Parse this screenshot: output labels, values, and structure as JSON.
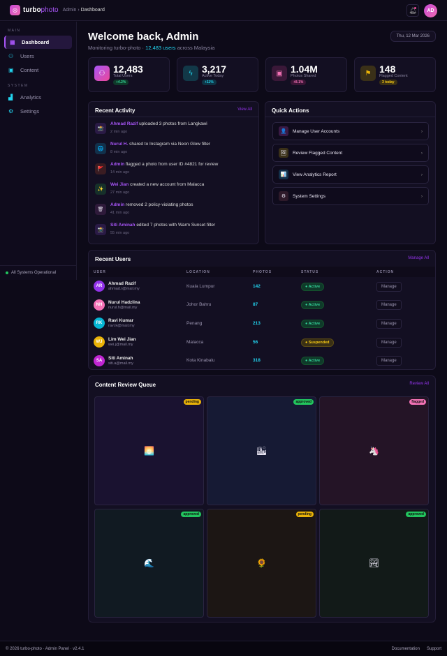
{
  "header": {
    "brand_a": "turbo",
    "brand_b": "photo",
    "crumb_parent": "Admin",
    "crumb_sep": "›",
    "crumb_current": "Dashboard",
    "avatar": "AD"
  },
  "sidebar": {
    "main_label": "MAIN",
    "system_label": "SYSTEM",
    "items": [
      {
        "label": "Dashboard",
        "icon": "grid-icon"
      },
      {
        "label": "Users",
        "icon": "users-icon"
      },
      {
        "label": "Content",
        "icon": "image-icon"
      },
      {
        "label": "Analytics",
        "icon": "bar-chart-icon"
      },
      {
        "label": "Settings",
        "icon": "gear-icon"
      }
    ],
    "status": "All Systems Operational"
  },
  "welcome": {
    "title": "Welcome back, Admin",
    "sub_a": "Monitoring turbo-photo · ",
    "sub_b": "12,483 users",
    "sub_c": " across Malaysia",
    "date": "Thu, 12 Mar 2026"
  },
  "stats": [
    {
      "value": "12,483",
      "label": "Total Users",
      "delta": "+4.2%"
    },
    {
      "value": "3,217",
      "label": "Active Today",
      "delta": "+11%"
    },
    {
      "value": "1.04M",
      "label": "Photos Shared",
      "delta": "+8.1%"
    },
    {
      "value": "148",
      "label": "Flagged Content",
      "delta": "3 today"
    }
  ],
  "activity": {
    "title": "Recent Activity",
    "link": "View All",
    "items": [
      {
        "who": "Ahmad Razif",
        "text": " uploaded 3 photos from Langkawi",
        "time": "2 min ago",
        "icon": "📸"
      },
      {
        "who": "Nurul H.",
        "text": " shared to Instagram via Neon Glow filter",
        "time": "8 min ago",
        "icon": "🌐"
      },
      {
        "who": "Admin",
        "text": " flagged a photo from user ID #4821 for review",
        "time": "14 min ago",
        "icon": "🚩"
      },
      {
        "who": "Wei Jian",
        "text": " created a new account from Malacca",
        "time": "27 min ago",
        "icon": "✨"
      },
      {
        "who": "Admin",
        "text": " removed 2 policy-violating photos",
        "time": "41 min ago",
        "icon": "🗑"
      },
      {
        "who": "Siti Aminah",
        "text": " edited 7 photos with Warm Sunset filter",
        "time": "55 min ago",
        "icon": "📸"
      }
    ]
  },
  "quick": {
    "title": "Quick Actions",
    "items": [
      {
        "label": "Manage User Accounts",
        "icon": "👤"
      },
      {
        "label": "Review Flagged Content",
        "icon": "🖼"
      },
      {
        "label": "View Analytics Report",
        "icon": "📊"
      },
      {
        "label": "System Settings",
        "icon": "⚙"
      }
    ]
  },
  "users": {
    "title": "Recent Users",
    "link": "Manage All",
    "columns": [
      "USER",
      "LOCATION",
      "PHOTOS",
      "STATUS",
      "ACTION"
    ],
    "rows": [
      {
        "initials": "AR",
        "name": "Ahmad Razif",
        "email": "ahmad.r@mail.my",
        "location": "Kuala Lumpur",
        "photos": "142",
        "status": "Active",
        "action": "Manage",
        "color": "#9333ea"
      },
      {
        "initials": "NH",
        "name": "Nurul Hadzlina",
        "email": "nurul.h@mail.my",
        "location": "Johor Bahru",
        "photos": "87",
        "status": "Active",
        "action": "Manage",
        "color": "#f472b6"
      },
      {
        "initials": "RK",
        "name": "Ravi Kumar",
        "email": "ravi.k@mail.my",
        "location": "Penang",
        "photos": "213",
        "status": "Active",
        "action": "Manage",
        "color": "#06b6d4"
      },
      {
        "initials": "WJ",
        "name": "Lim Wei Jian",
        "email": "wei.j@mail.my",
        "location": "Malacca",
        "photos": "56",
        "status": "Suspended",
        "action": "Manage",
        "color": "#eab308"
      },
      {
        "initials": "SA",
        "name": "Siti Aminah",
        "email": "siti.a@mail.my",
        "location": "Kota Kinabalu",
        "photos": "318",
        "status": "Active",
        "action": "Manage",
        "color": "#c026d3"
      }
    ]
  },
  "queue": {
    "title": "Content Review Queue",
    "link": "Review All",
    "items": [
      {
        "icon": "🌅",
        "status": "pending"
      },
      {
        "icon": "🏙",
        "status": "approved"
      },
      {
        "icon": "🦄",
        "status": "flagged"
      },
      {
        "icon": "🌊",
        "status": "approved"
      },
      {
        "icon": "🌻",
        "status": "pending"
      },
      {
        "icon": "🏞",
        "status": "approved"
      }
    ]
  },
  "footer": {
    "left": "© 2026 turbo-photo · Admin Panel · v2.4.1",
    "links": [
      "Documentation",
      "Support"
    ]
  }
}
